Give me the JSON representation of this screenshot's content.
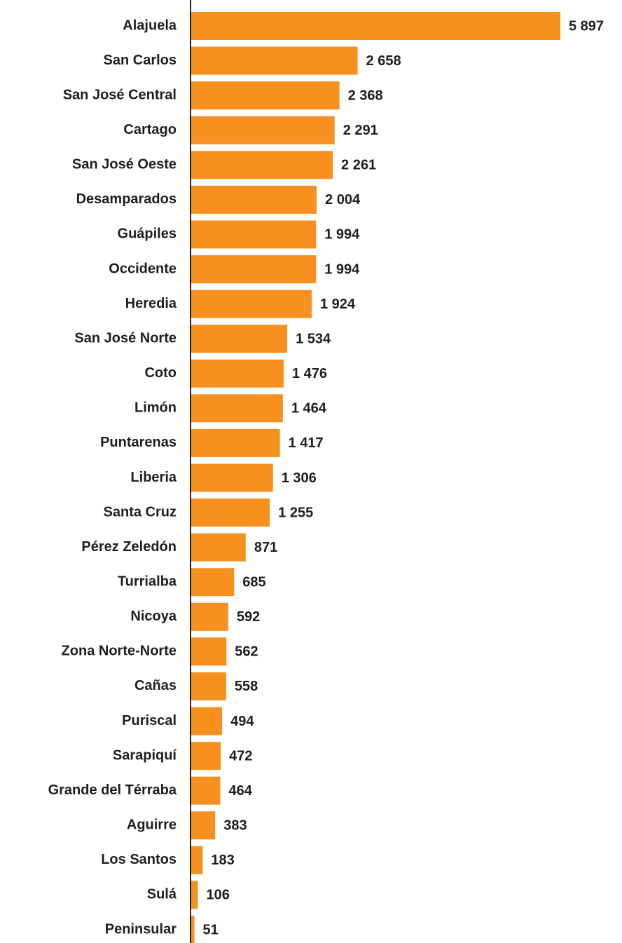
{
  "chart_data": {
    "type": "barh",
    "categories": [
      "Alajuela",
      "San Carlos",
      "San José Central",
      "Cartago",
      "San José Oeste",
      "Desamparados",
      "Guápiles",
      "Occidente",
      "Heredia",
      "San José Norte",
      "Coto",
      "Limón",
      "Puntarenas",
      "Liberia",
      "Santa Cruz",
      "Pérez Zeledón",
      "Turrialba",
      "Nicoya",
      "Zona Norte-Norte",
      "Cañas",
      "Puriscal",
      "Sarapiquí",
      "Grande del Térraba",
      "Aguirre",
      "Los Santos",
      "Sulá",
      "Peninsular"
    ],
    "values": [
      5897,
      2658,
      2368,
      2291,
      2261,
      2004,
      1994,
      1994,
      1924,
      1534,
      1476,
      1464,
      1417,
      1306,
      1255,
      871,
      685,
      592,
      562,
      558,
      494,
      472,
      464,
      383,
      183,
      106,
      51
    ],
    "value_labels": [
      "5 897",
      "2 658",
      "2 368",
      "2 291",
      "2 261",
      "2 004",
      "1 994",
      "1 994",
      "1 924",
      "1 534",
      "1 476",
      "1 464",
      "1 417",
      "1 306",
      "1 255",
      "871",
      "685",
      "592",
      "562",
      "558",
      "494",
      "472",
      "464",
      "383",
      "183",
      "106",
      "51"
    ],
    "color": "#f7901e"
  }
}
